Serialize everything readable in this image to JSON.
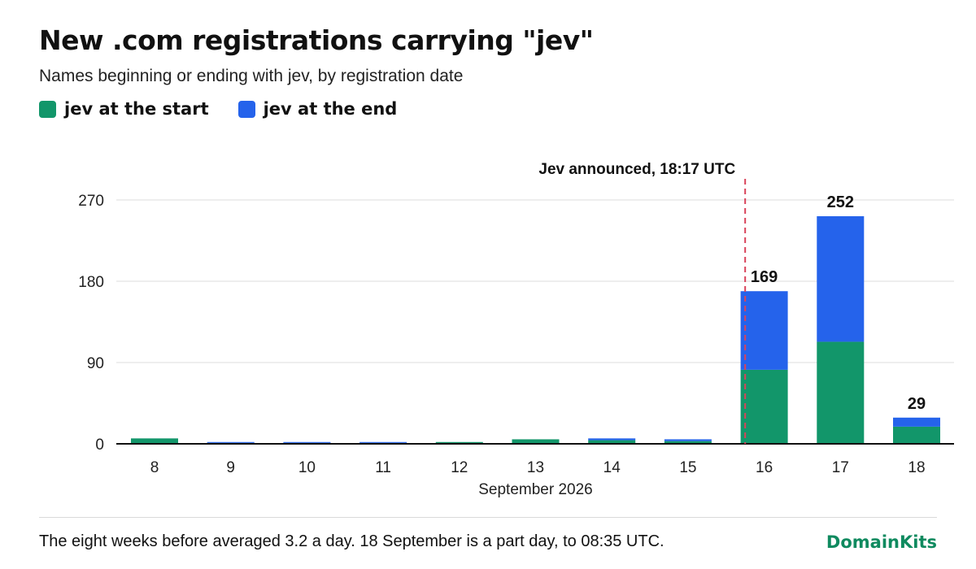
{
  "chart_data": {
    "type": "bar",
    "stacked": true,
    "title": "New .com registrations carrying \"jev\"",
    "subtitle": "Names beginning or ending with jev, by registration date",
    "xlabel": "September 2026",
    "ylabel": "",
    "ylim": [
      0,
      270
    ],
    "yticks": [
      0,
      90,
      180,
      270
    ],
    "grid": true,
    "legend_position": "top-left",
    "categories": [
      "8",
      "9",
      "10",
      "11",
      "12",
      "13",
      "14",
      "15",
      "16",
      "17",
      "18"
    ],
    "series": [
      {
        "name": "jev at the start",
        "color": "#12966a",
        "values": [
          6,
          1,
          1,
          1,
          2,
          5,
          4,
          3,
          82,
          113,
          19
        ]
      },
      {
        "name": "jev at the end",
        "color": "#2563eb",
        "values": [
          0,
          1,
          1,
          1,
          0,
          0,
          2,
          2,
          87,
          139,
          10
        ]
      }
    ],
    "total_labels": [
      {
        "category": "16",
        "value": "169"
      },
      {
        "category": "17",
        "value": "252"
      },
      {
        "category": "18",
        "value": "29"
      }
    ],
    "annotation": {
      "text": "Jev announced, 18:17 UTC",
      "between": [
        "15",
        "16"
      ],
      "position": 0.75
    }
  },
  "footer": {
    "note": "The eight weeks before averaged 3.2 a day. 18 September is a part day, to 08:35 UTC.",
    "brand": "DomainKits"
  },
  "colors": {
    "start": "#12966a",
    "end": "#2563eb",
    "annotation_line": "#d9435a",
    "grid": "#e3e3e3",
    "brand": "#0f8a5f"
  }
}
